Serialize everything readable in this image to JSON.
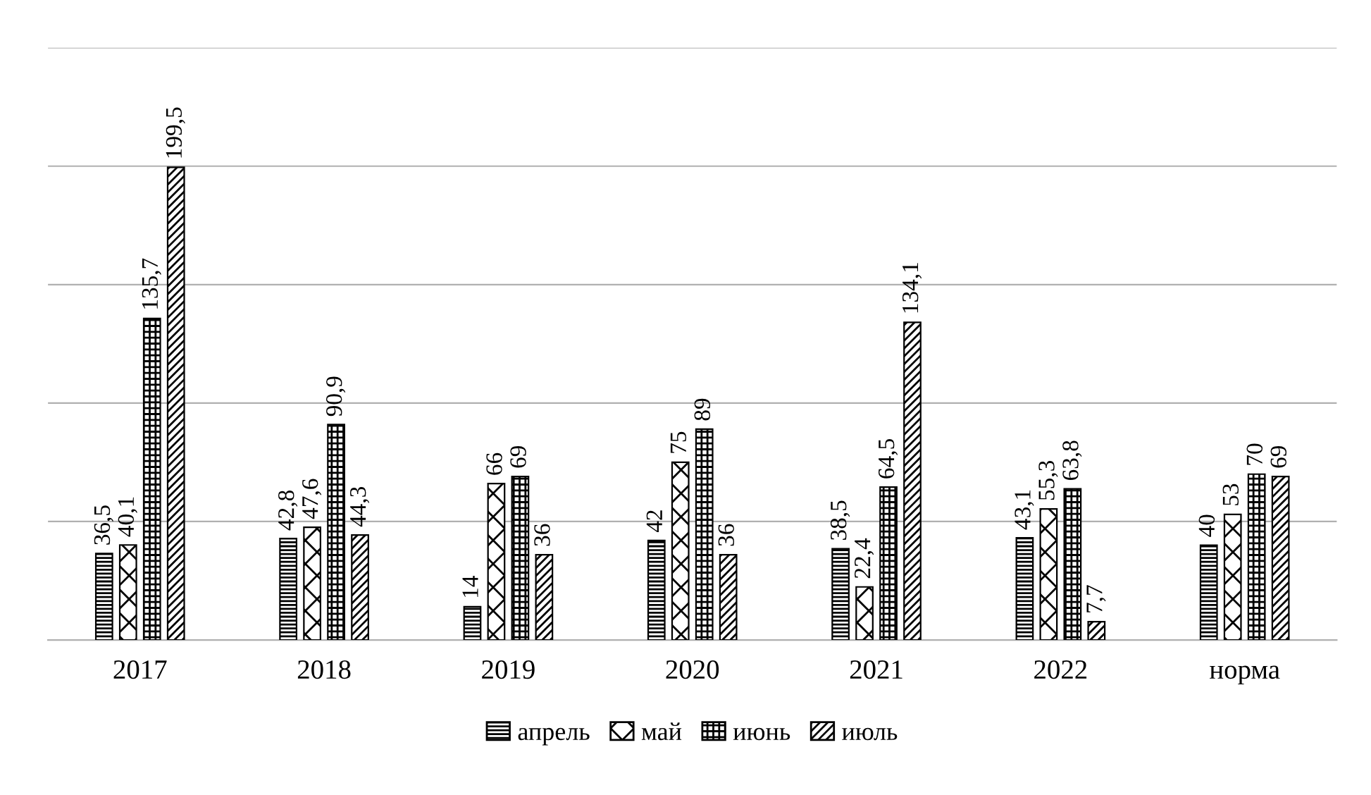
{
  "chart_data": {
    "type": "bar",
    "categories": [
      "2017",
      "2018",
      "2019",
      "2020",
      "2021",
      "2022",
      "норма"
    ],
    "series": [
      {
        "name": "апрель",
        "color": "#000000",
        "values": [
          36.5,
          42.8,
          14,
          42,
          38.5,
          43.1,
          40
        ],
        "value_labels": [
          "36,5",
          "42,8",
          "14",
          "42",
          "38,5",
          "43,1",
          "40"
        ]
      },
      {
        "name": "май",
        "color": "#000000",
        "values": [
          40.1,
          47.6,
          66,
          75,
          22.4,
          55.3,
          53
        ],
        "value_labels": [
          "40,1",
          "47,6",
          "66",
          "75",
          "22,4",
          "55,3",
          "53"
        ]
      },
      {
        "name": "июнь",
        "color": "#000000",
        "values": [
          135.7,
          90.9,
          69,
          89,
          64.5,
          63.8,
          70
        ],
        "value_labels": [
          "135,7",
          "90,9",
          "69",
          "89",
          "64,5",
          "63,8",
          "70"
        ]
      },
      {
        "name": "июль",
        "color": "#000000",
        "values": [
          199.5,
          44.3,
          36,
          36,
          134.1,
          7.7,
          69
        ],
        "value_labels": [
          "199,5",
          "44,3",
          "36",
          "36",
          "134,1",
          "7,7",
          "69"
        ]
      }
    ],
    "ylim": [
      0,
      250
    ],
    "yticks": [
      {
        "value": 0,
        "label": null
      },
      {
        "value": 50,
        "label": null
      },
      {
        "value": 100,
        "label": null
      },
      {
        "value": 150,
        "label": null
      },
      {
        "value": 200,
        "label": null
      },
      {
        "value": 250,
        "label": null
      }
    ],
    "tick_labels": "x",
    "grid": "y",
    "legend": "bottom"
  }
}
